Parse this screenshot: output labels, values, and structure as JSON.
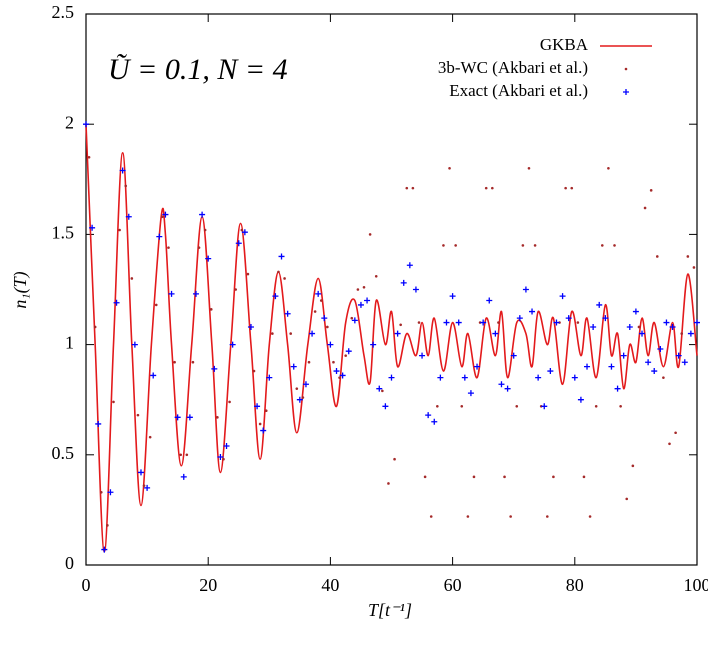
{
  "chart_data": {
    "type": "line",
    "annotation": "Ũ = 0.1, N = 4",
    "x_label": "T[t⁻¹]",
    "y_label": "n₁(T)",
    "xlim": [
      0,
      100
    ],
    "ylim": [
      0,
      2.5
    ],
    "xticks": [
      0,
      20,
      40,
      60,
      80,
      100
    ],
    "yticks": [
      0,
      0.5,
      1,
      1.5,
      2,
      2.5
    ],
    "legend": "upper right",
    "series": [
      {
        "name": "GKBA",
        "style": "line",
        "color": "#e31a1c",
        "x": [
          0,
          1.5,
          3,
          4.5,
          6,
          7.5,
          9,
          10.7,
          12.3,
          13,
          14,
          15.6,
          17.3,
          19,
          20.6,
          22,
          23.7,
          25.3,
          27,
          28.5,
          30,
          31.5,
          33,
          34.5,
          36.3,
          38,
          39.5,
          41,
          42.5,
          44,
          45.5,
          46.5,
          47.5,
          49,
          50,
          51,
          52.5,
          54,
          55,
          56,
          57,
          58.5,
          60,
          61.5,
          62.5,
          64,
          65.5,
          67,
          68,
          69,
          70.5,
          72,
          73,
          74,
          75.5,
          76.5,
          78,
          79.5,
          81,
          82,
          83.5,
          85,
          86,
          87,
          88,
          89,
          90,
          91,
          92,
          93,
          94.5,
          96,
          97,
          98.5,
          100
        ],
        "values": [
          2.0,
          1.0,
          0.06,
          1.0,
          1.87,
          1.0,
          0.27,
          1.0,
          1.58,
          1.5,
          1.0,
          0.45,
          1.0,
          1.58,
          1.0,
          0.42,
          1.0,
          1.55,
          1.0,
          0.48,
          1.0,
          1.33,
          1.0,
          0.6,
          1.0,
          1.3,
          1.0,
          0.72,
          1.1,
          1.2,
          0.95,
          0.83,
          1.2,
          1.0,
          1.15,
          0.9,
          1.05,
          0.95,
          1.1,
          0.95,
          1.12,
          0.88,
          1.1,
          0.9,
          1.05,
          0.85,
          1.12,
          0.95,
          1.15,
          0.85,
          1.1,
          1.05,
          0.9,
          1.15,
          1.0,
          1.12,
          0.82,
          1.15,
          0.95,
          1.12,
          0.85,
          1.18,
          0.95,
          1.05,
          0.8,
          1.0,
          0.92,
          1.12,
          0.95,
          1.1,
          0.9,
          1.1,
          0.9,
          1.32,
          0.95
        ]
      },
      {
        "name": "3b-WC (Akbari et al.)",
        "style": "dots",
        "color": "#a52a2a",
        "x": [
          0.5,
          1.5,
          2.5,
          3.5,
          4.5,
          5.5,
          6.5,
          7.5,
          8.5,
          9.5,
          10.5,
          11.5,
          12.5,
          13.5,
          14.5,
          15.5,
          16.5,
          17.5,
          18.5,
          19.5,
          20.5,
          21.5,
          22.5,
          23.5,
          24.5,
          25.5,
          26.5,
          27.5,
          28.5,
          29.5,
          30.5,
          31.5,
          32.5,
          33.5,
          34.5,
          35.5,
          36.5,
          37.5,
          38.5,
          39.5,
          40.5,
          41.5,
          42.5,
          43.5,
          44.5,
          45.5,
          46.5,
          47.5,
          48.5,
          49.5,
          50.5,
          51.5,
          52.5,
          53.5,
          54.5,
          55.5,
          56.5,
          57.5,
          58.5,
          59.5,
          60.5,
          61.5,
          62.5,
          63.5,
          64.5,
          65.5,
          66.5,
          67.5,
          68.5,
          69.5,
          70.5,
          71.5,
          72.5,
          73.5,
          74.5,
          75.5,
          76.5,
          77.5,
          78.5,
          79.5,
          80.5,
          81.5,
          82.5,
          83.5,
          84.5,
          85.5,
          86.5,
          87.5,
          88.5,
          89.5,
          90.5,
          91.5,
          92.5,
          93.5,
          94.5,
          95.5,
          96.5,
          97.5,
          98.5,
          99.5
        ],
        "values": [
          1.85,
          1.08,
          0.33,
          0.18,
          0.74,
          1.52,
          1.72,
          1.3,
          0.68,
          0.36,
          0.58,
          1.18,
          1.58,
          1.44,
          0.92,
          0.5,
          0.5,
          0.92,
          1.44,
          1.52,
          1.16,
          0.67,
          0.48,
          0.74,
          1.25,
          1.52,
          1.32,
          0.88,
          0.64,
          0.7,
          1.05,
          1.33,
          1.3,
          1.05,
          0.8,
          0.76,
          0.92,
          1.15,
          1.2,
          1.08,
          0.92,
          0.85,
          0.95,
          1.12,
          1.25,
          1.26,
          1.5,
          1.31,
          0.79,
          0.37,
          0.48,
          1.09,
          1.71,
          1.71,
          1.1,
          0.4,
          0.22,
          0.72,
          1.45,
          1.8,
          1.45,
          0.72,
          0.22,
          0.4,
          1.1,
          1.71,
          1.71,
          1.1,
          0.4,
          0.22,
          0.72,
          1.45,
          1.8,
          1.45,
          0.72,
          0.22,
          0.4,
          1.1,
          1.71,
          1.71,
          1.1,
          0.4,
          0.22,
          0.72,
          1.45,
          1.8,
          1.45,
          0.72,
          0.3,
          0.45,
          1.08,
          1.62,
          1.7,
          1.4,
          0.85,
          0.55,
          0.6,
          1.05,
          1.4,
          1.35
        ]
      },
      {
        "name": "Exact (Akbari et al.)",
        "style": "plus",
        "color": "#0000ff",
        "x": [
          0,
          1,
          2,
          3,
          4,
          5,
          6,
          7,
          8,
          9,
          10,
          11,
          12,
          13,
          14,
          15,
          16,
          17,
          18,
          19,
          20,
          21,
          22,
          23,
          24,
          25,
          26,
          27,
          28,
          29,
          30,
          31,
          32,
          33,
          34,
          35,
          36,
          37,
          38,
          39,
          40,
          41,
          42,
          43,
          44,
          45,
          46,
          47,
          48,
          49,
          50,
          51,
          52,
          53,
          54,
          55,
          56,
          57,
          58,
          59,
          60,
          61,
          62,
          63,
          64,
          65,
          66,
          67,
          68,
          69,
          70,
          71,
          72,
          73,
          74,
          75,
          76,
          77,
          78,
          79,
          80,
          81,
          82,
          83,
          84,
          85,
          86,
          87,
          88,
          89,
          90,
          91,
          92,
          93,
          94,
          95,
          96,
          97,
          98,
          99,
          100
        ],
        "values": [
          2.0,
          1.53,
          0.64,
          0.07,
          0.33,
          1.19,
          1.79,
          1.58,
          1.0,
          0.42,
          0.35,
          0.86,
          1.49,
          1.59,
          1.23,
          0.67,
          0.4,
          0.67,
          1.23,
          1.59,
          1.39,
          0.89,
          0.49,
          0.54,
          1.0,
          1.46,
          1.51,
          1.08,
          0.72,
          0.61,
          0.85,
          1.22,
          1.4,
          1.14,
          0.9,
          0.75,
          0.82,
          1.05,
          1.23,
          1.12,
          1.0,
          0.88,
          0.86,
          0.97,
          1.11,
          1.18,
          1.2,
          1.0,
          0.8,
          0.72,
          0.85,
          1.05,
          1.28,
          1.36,
          1.25,
          0.95,
          0.68,
          0.65,
          0.85,
          1.1,
          1.22,
          1.1,
          0.85,
          0.78,
          0.9,
          1.1,
          1.2,
          1.05,
          0.82,
          0.8,
          0.95,
          1.12,
          1.25,
          1.15,
          0.85,
          0.72,
          0.88,
          1.1,
          1.22,
          1.12,
          0.85,
          0.75,
          0.9,
          1.08,
          1.18,
          1.12,
          0.9,
          0.8,
          0.95,
          1.08,
          1.15,
          1.05,
          0.92,
          0.88,
          0.98,
          1.1,
          1.08,
          0.95,
          0.92,
          1.05,
          1.1
        ]
      }
    ]
  }
}
